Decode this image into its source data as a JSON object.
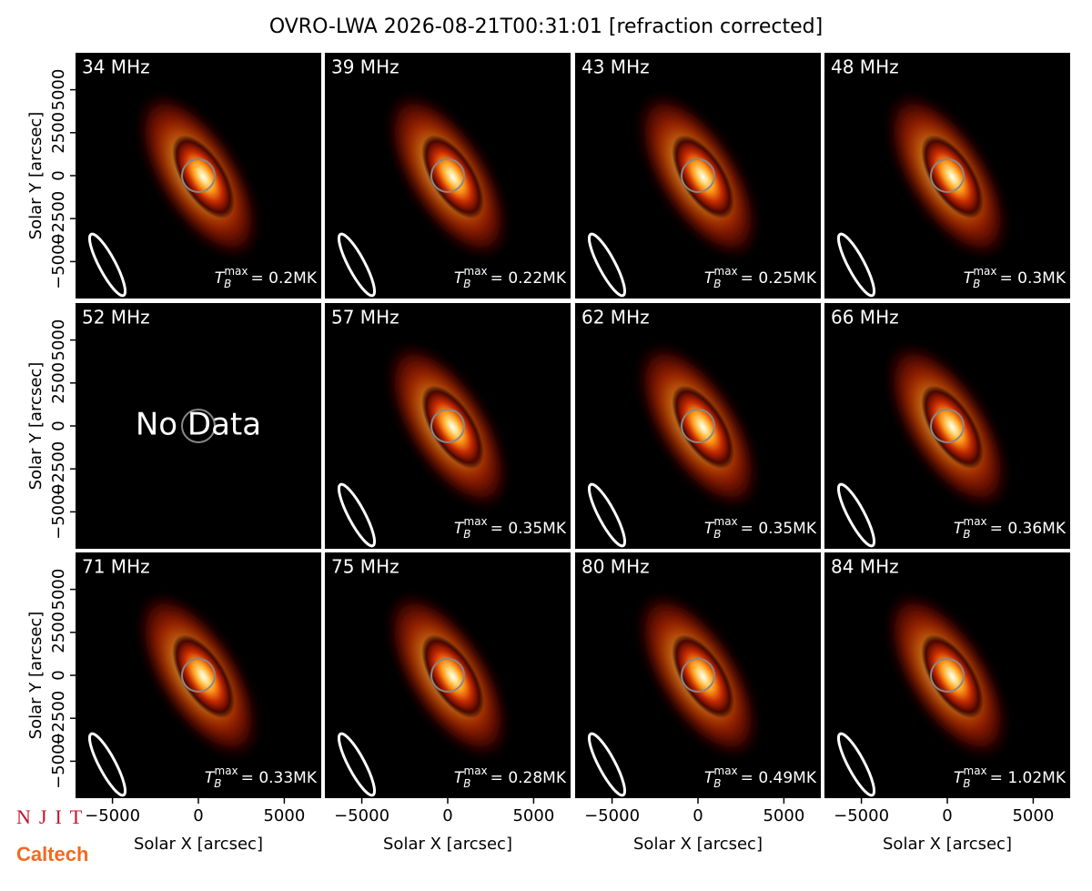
{
  "chart_data": {
    "type": "image_grid",
    "title": "OVRO-LWA 2026-08-21T00:31:01 [refraction corrected]",
    "xlabel": "Solar X [arcsec]",
    "ylabel": "Solar Y [arcsec]",
    "xlim": [
      -7150,
      7150
    ],
    "ylim": [
      -7150,
      7150
    ],
    "xticks": [
      {
        "value": -5000,
        "label": "−5000"
      },
      0,
      5000
    ],
    "yticks": [
      {
        "value": -5000,
        "label": "−5000"
      },
      {
        "value": -2500,
        "label": "−2500"
      },
      0,
      2500,
      5000
    ],
    "tmax_symbol": "T",
    "tmax_sub": "B",
    "tmax_sup": "max",
    "panels": [
      {
        "label": "34 MHz",
        "tmax": "= 0.2MK"
      },
      {
        "label": "39 MHz",
        "tmax": "= 0.22MK"
      },
      {
        "label": "43 MHz",
        "tmax": "= 0.25MK"
      },
      {
        "label": "48 MHz",
        "tmax": "= 0.3MK"
      },
      {
        "label": "52 MHz",
        "note": "No Data"
      },
      {
        "label": "57 MHz",
        "tmax": "= 0.35MK"
      },
      {
        "label": "62 MHz",
        "tmax": "= 0.35MK"
      },
      {
        "label": "66 MHz",
        "tmax": "= 0.36MK"
      },
      {
        "label": "71 MHz",
        "tmax": "= 0.33MK"
      },
      {
        "label": "75 MHz",
        "tmax": "= 0.28MK"
      },
      {
        "label": "80 MHz",
        "tmax": "= 0.49MK"
      },
      {
        "label": "84 MHz",
        "tmax": "= 1.02MK"
      }
    ]
  },
  "logos": [
    "NJIT",
    "Caltech"
  ]
}
